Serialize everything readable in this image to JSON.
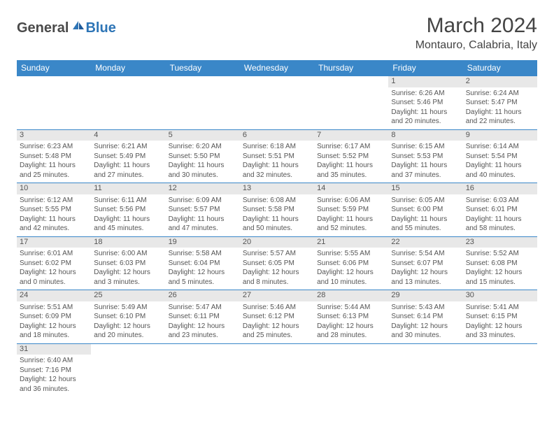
{
  "logo": {
    "general": "General",
    "blue": "Blue"
  },
  "title": "March 2024",
  "location": "Montauro, Calabria, Italy",
  "colors": {
    "header_bg": "#3a87c8",
    "header_text": "#ffffff",
    "daynum_bg": "#e8e8e8",
    "border": "#3a87c8",
    "text": "#555555",
    "logo_gray": "#4a4a4a",
    "logo_blue": "#2e75b6"
  },
  "days_of_week": [
    "Sunday",
    "Monday",
    "Tuesday",
    "Wednesday",
    "Thursday",
    "Friday",
    "Saturday"
  ],
  "weeks": [
    [
      null,
      null,
      null,
      null,
      null,
      {
        "n": "1",
        "sr": "Sunrise: 6:26 AM",
        "ss": "Sunset: 5:46 PM",
        "dl": "Daylight: 11 hours and 20 minutes."
      },
      {
        "n": "2",
        "sr": "Sunrise: 6:24 AM",
        "ss": "Sunset: 5:47 PM",
        "dl": "Daylight: 11 hours and 22 minutes."
      }
    ],
    [
      {
        "n": "3",
        "sr": "Sunrise: 6:23 AM",
        "ss": "Sunset: 5:48 PM",
        "dl": "Daylight: 11 hours and 25 minutes."
      },
      {
        "n": "4",
        "sr": "Sunrise: 6:21 AM",
        "ss": "Sunset: 5:49 PM",
        "dl": "Daylight: 11 hours and 27 minutes."
      },
      {
        "n": "5",
        "sr": "Sunrise: 6:20 AM",
        "ss": "Sunset: 5:50 PM",
        "dl": "Daylight: 11 hours and 30 minutes."
      },
      {
        "n": "6",
        "sr": "Sunrise: 6:18 AM",
        "ss": "Sunset: 5:51 PM",
        "dl": "Daylight: 11 hours and 32 minutes."
      },
      {
        "n": "7",
        "sr": "Sunrise: 6:17 AM",
        "ss": "Sunset: 5:52 PM",
        "dl": "Daylight: 11 hours and 35 minutes."
      },
      {
        "n": "8",
        "sr": "Sunrise: 6:15 AM",
        "ss": "Sunset: 5:53 PM",
        "dl": "Daylight: 11 hours and 37 minutes."
      },
      {
        "n": "9",
        "sr": "Sunrise: 6:14 AM",
        "ss": "Sunset: 5:54 PM",
        "dl": "Daylight: 11 hours and 40 minutes."
      }
    ],
    [
      {
        "n": "10",
        "sr": "Sunrise: 6:12 AM",
        "ss": "Sunset: 5:55 PM",
        "dl": "Daylight: 11 hours and 42 minutes."
      },
      {
        "n": "11",
        "sr": "Sunrise: 6:11 AM",
        "ss": "Sunset: 5:56 PM",
        "dl": "Daylight: 11 hours and 45 minutes."
      },
      {
        "n": "12",
        "sr": "Sunrise: 6:09 AM",
        "ss": "Sunset: 5:57 PM",
        "dl": "Daylight: 11 hours and 47 minutes."
      },
      {
        "n": "13",
        "sr": "Sunrise: 6:08 AM",
        "ss": "Sunset: 5:58 PM",
        "dl": "Daylight: 11 hours and 50 minutes."
      },
      {
        "n": "14",
        "sr": "Sunrise: 6:06 AM",
        "ss": "Sunset: 5:59 PM",
        "dl": "Daylight: 11 hours and 52 minutes."
      },
      {
        "n": "15",
        "sr": "Sunrise: 6:05 AM",
        "ss": "Sunset: 6:00 PM",
        "dl": "Daylight: 11 hours and 55 minutes."
      },
      {
        "n": "16",
        "sr": "Sunrise: 6:03 AM",
        "ss": "Sunset: 6:01 PM",
        "dl": "Daylight: 11 hours and 58 minutes."
      }
    ],
    [
      {
        "n": "17",
        "sr": "Sunrise: 6:01 AM",
        "ss": "Sunset: 6:02 PM",
        "dl": "Daylight: 12 hours and 0 minutes."
      },
      {
        "n": "18",
        "sr": "Sunrise: 6:00 AM",
        "ss": "Sunset: 6:03 PM",
        "dl": "Daylight: 12 hours and 3 minutes."
      },
      {
        "n": "19",
        "sr": "Sunrise: 5:58 AM",
        "ss": "Sunset: 6:04 PM",
        "dl": "Daylight: 12 hours and 5 minutes."
      },
      {
        "n": "20",
        "sr": "Sunrise: 5:57 AM",
        "ss": "Sunset: 6:05 PM",
        "dl": "Daylight: 12 hours and 8 minutes."
      },
      {
        "n": "21",
        "sr": "Sunrise: 5:55 AM",
        "ss": "Sunset: 6:06 PM",
        "dl": "Daylight: 12 hours and 10 minutes."
      },
      {
        "n": "22",
        "sr": "Sunrise: 5:54 AM",
        "ss": "Sunset: 6:07 PM",
        "dl": "Daylight: 12 hours and 13 minutes."
      },
      {
        "n": "23",
        "sr": "Sunrise: 5:52 AM",
        "ss": "Sunset: 6:08 PM",
        "dl": "Daylight: 12 hours and 15 minutes."
      }
    ],
    [
      {
        "n": "24",
        "sr": "Sunrise: 5:51 AM",
        "ss": "Sunset: 6:09 PM",
        "dl": "Daylight: 12 hours and 18 minutes."
      },
      {
        "n": "25",
        "sr": "Sunrise: 5:49 AM",
        "ss": "Sunset: 6:10 PM",
        "dl": "Daylight: 12 hours and 20 minutes."
      },
      {
        "n": "26",
        "sr": "Sunrise: 5:47 AM",
        "ss": "Sunset: 6:11 PM",
        "dl": "Daylight: 12 hours and 23 minutes."
      },
      {
        "n": "27",
        "sr": "Sunrise: 5:46 AM",
        "ss": "Sunset: 6:12 PM",
        "dl": "Daylight: 12 hours and 25 minutes."
      },
      {
        "n": "28",
        "sr": "Sunrise: 5:44 AM",
        "ss": "Sunset: 6:13 PM",
        "dl": "Daylight: 12 hours and 28 minutes."
      },
      {
        "n": "29",
        "sr": "Sunrise: 5:43 AM",
        "ss": "Sunset: 6:14 PM",
        "dl": "Daylight: 12 hours and 30 minutes."
      },
      {
        "n": "30",
        "sr": "Sunrise: 5:41 AM",
        "ss": "Sunset: 6:15 PM",
        "dl": "Daylight: 12 hours and 33 minutes."
      }
    ],
    [
      {
        "n": "31",
        "sr": "Sunrise: 6:40 AM",
        "ss": "Sunset: 7:16 PM",
        "dl": "Daylight: 12 hours and 36 minutes."
      },
      null,
      null,
      null,
      null,
      null,
      null
    ]
  ]
}
